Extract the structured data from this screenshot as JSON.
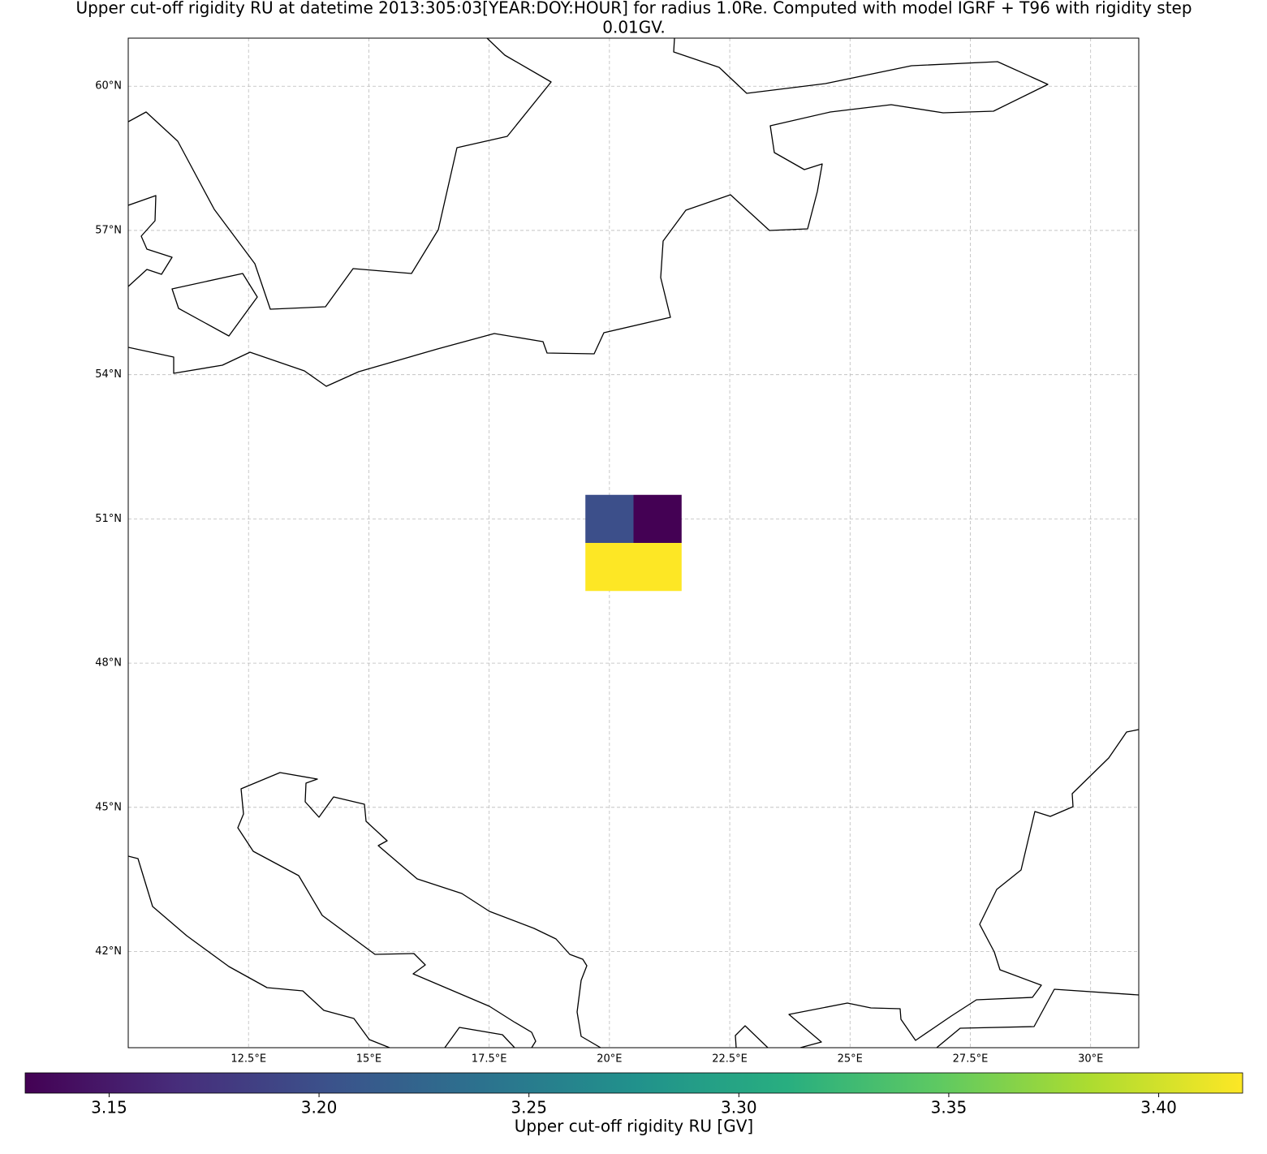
{
  "chart_data": {
    "type": "heatmap",
    "title_lines": [
      "Upper cut-off rigidity RU at datetime 2013:305:03[YEAR:DOY:HOUR] for radius 1.0Re. Computed with model IGRF + T96 with rigidity step",
      "0.01GV."
    ],
    "x": [
      20,
      21
    ],
    "y": [
      50,
      51
    ],
    "z": [
      [
        3.42,
        3.42
      ],
      [
        3.2,
        3.13
      ]
    ],
    "colormap": "viridis",
    "xlim": [
      10,
      31
    ],
    "ylim": [
      40,
      61
    ],
    "xticks": [
      {
        "value": 12.5,
        "label": "12.5°E"
      },
      {
        "value": 15,
        "label": "15°E"
      },
      {
        "value": 17.5,
        "label": "17.5°E"
      },
      {
        "value": 20,
        "label": "20°E"
      },
      {
        "value": 22.5,
        "label": "22.5°E"
      },
      {
        "value": 25,
        "label": "25°E"
      },
      {
        "value": 27.5,
        "label": "27.5°E"
      },
      {
        "value": 30,
        "label": "30°E"
      }
    ],
    "yticks": [
      {
        "value": 42,
        "label": "42°N"
      },
      {
        "value": 45,
        "label": "45°N"
      },
      {
        "value": 48,
        "label": "48°N"
      },
      {
        "value": 51,
        "label": "51°N"
      },
      {
        "value": 54,
        "label": "54°N"
      },
      {
        "value": 57,
        "label": "57°N"
      },
      {
        "value": 60,
        "label": "60°N"
      }
    ],
    "grid": true,
    "colorbar": {
      "label": "Upper cut-off rigidity RU [GV]",
      "clim": [
        3.13,
        3.42
      ],
      "ticks": [
        3.15,
        {
          "value": 3.2,
          "label": "3.20"
        },
        3.25,
        {
          "value": 3.3,
          "label": "3.30"
        },
        3.35,
        {
          "value": 3.4,
          "label": "3.40"
        }
      ]
    }
  }
}
